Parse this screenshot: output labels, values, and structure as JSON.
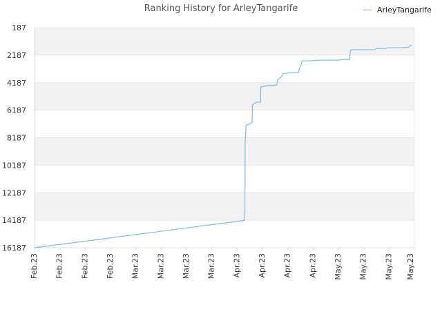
{
  "chart_data": {
    "type": "line",
    "title": "Ranking History for ArleyTangarife",
    "xlabel": "",
    "ylabel": "",
    "y_inverted": true,
    "ylim": [
      187,
      16187
    ],
    "y_ticks": [
      187,
      2187,
      4187,
      6187,
      8187,
      10187,
      12187,
      14187,
      16187
    ],
    "x_tick_labels": [
      "Feb.23",
      "Feb.23",
      "Feb.23",
      "Feb.23",
      "Mar.23",
      "Mar.23",
      "Mar.23",
      "Mar.23",
      "Apr.23",
      "Apr.23",
      "Apr.23",
      "Apr.23",
      "May.23",
      "May.23",
      "May.23",
      "May.23"
    ],
    "grid": true,
    "legend_position": "top-right",
    "colors": {
      "line": "#7cb9e8",
      "band": "#f2f2f2",
      "grid": "#e6e6e6",
      "axis_text": "#333333"
    },
    "series": [
      {
        "name": "ArleyTangarife",
        "points": [
          [
            0.0,
            16187
          ],
          [
            55.3,
            14200
          ],
          [
            55.4,
            13400
          ],
          [
            55.45,
            8500
          ],
          [
            55.7,
            7300
          ],
          [
            56.5,
            7200
          ],
          [
            57.3,
            7100
          ],
          [
            57.35,
            5800
          ],
          [
            58.5,
            5600
          ],
          [
            59.5,
            5600
          ],
          [
            59.55,
            4500
          ],
          [
            61.5,
            4400
          ],
          [
            63.8,
            4350
          ],
          [
            64.0,
            4000
          ],
          [
            64.3,
            3900
          ],
          [
            65.2,
            3700
          ],
          [
            65.3,
            3550
          ],
          [
            66.5,
            3500
          ],
          [
            68.0,
            3450
          ],
          [
            69.5,
            3450
          ],
          [
            69.6,
            3300
          ],
          [
            69.9,
            3000
          ],
          [
            70.2,
            2900
          ],
          [
            70.4,
            2600
          ],
          [
            72.5,
            2600
          ],
          [
            75.0,
            2550
          ],
          [
            80.0,
            2550
          ],
          [
            81.0,
            2500
          ],
          [
            83.0,
            2500
          ],
          [
            83.1,
            2000
          ],
          [
            83.3,
            1800
          ],
          [
            86.0,
            1800
          ],
          [
            89.5,
            1800
          ],
          [
            90.0,
            1700
          ],
          [
            92.5,
            1700
          ],
          [
            93.0,
            1650
          ],
          [
            96.0,
            1650
          ],
          [
            98.5,
            1600
          ],
          [
            99.0,
            1500
          ],
          [
            99.3,
            1450
          ]
        ]
      }
    ]
  }
}
